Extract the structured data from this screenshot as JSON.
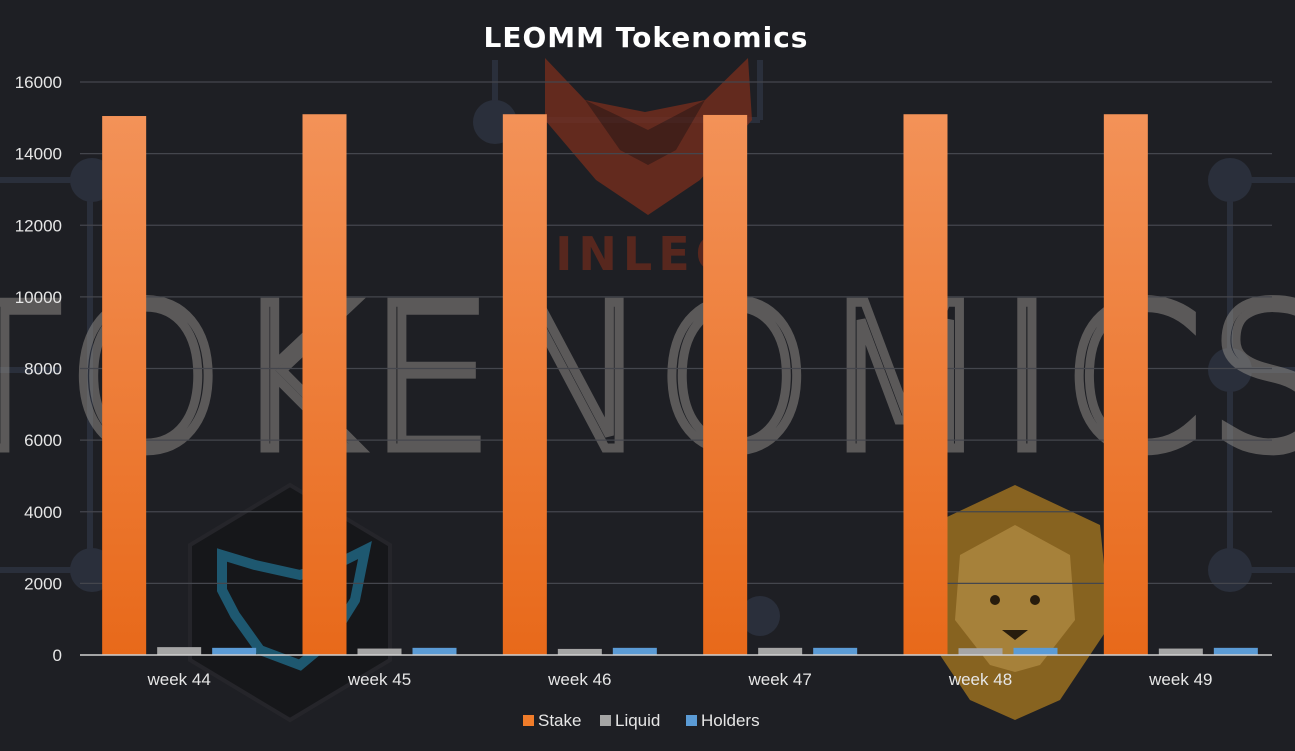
{
  "chart_data": {
    "type": "bar",
    "title": "LEOMM Tokenomics",
    "xlabel": "",
    "ylabel": "",
    "categories": [
      "week 44",
      "week 45",
      "week 46",
      "week 47",
      "week 48",
      "week 49"
    ],
    "series": [
      {
        "name": "Stake",
        "color": "#f07c2a",
        "values": [
          15050,
          15100,
          15100,
          15080,
          15100,
          15100
        ]
      },
      {
        "name": "Liquid",
        "color": "#a5a5a5",
        "values": [
          220,
          180,
          170,
          200,
          190,
          180
        ]
      },
      {
        "name": "Holders",
        "color": "#5b9bd5",
        "values": [
          200,
          200,
          200,
          200,
          200,
          200
        ]
      }
    ],
    "ylim": [
      0,
      16000
    ],
    "yticks": [
      0,
      2000,
      4000,
      6000,
      8000,
      10000,
      12000,
      14000,
      16000
    ],
    "grid": true,
    "legend_position": "bottom-center"
  },
  "background": {
    "watermark_logo_text": "TOKENOMICS",
    "brand_mark_text": "INLEO"
  }
}
